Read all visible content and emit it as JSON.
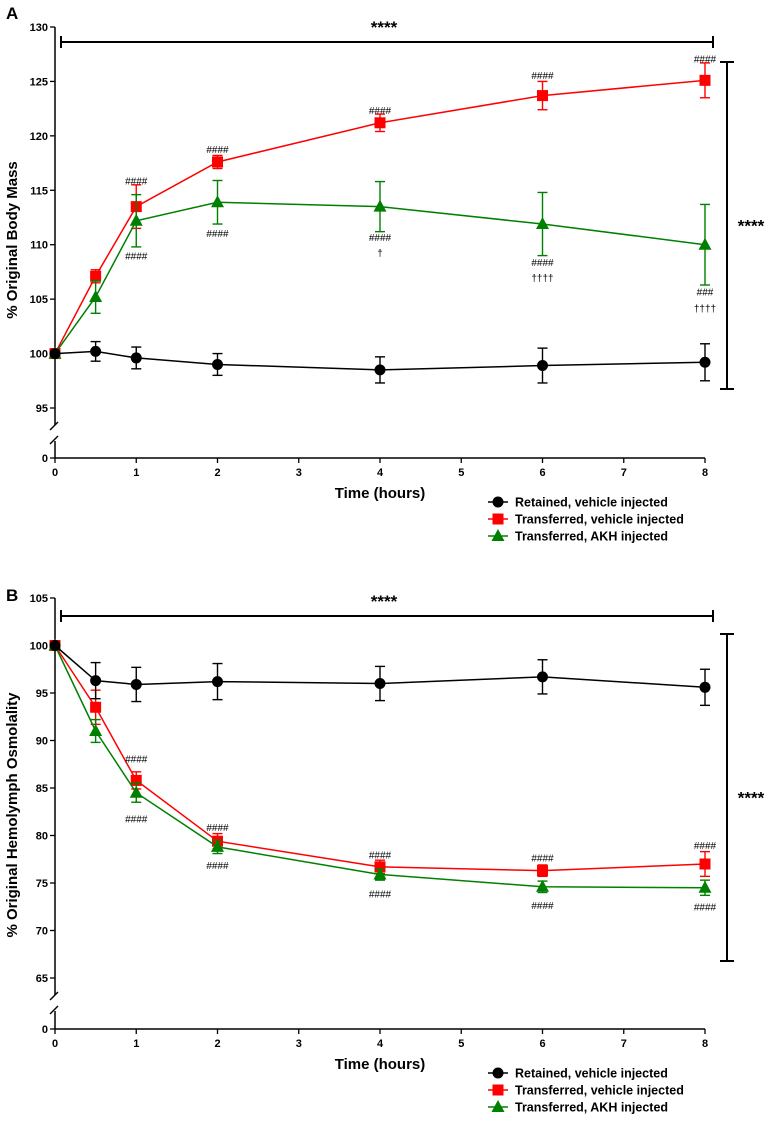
{
  "chart_data": [
    {
      "panel": "A",
      "type": "line",
      "ylabel": "% Original Body Mass",
      "xlabel": "Time (hours)",
      "xlim": [
        0,
        8
      ],
      "xticks": [
        "0",
        "1",
        "2",
        "3",
        "4",
        "5",
        "6",
        "7",
        "8"
      ],
      "ylim": [
        95,
        130
      ],
      "ybreak": [
        0,
        95
      ],
      "yticks": [
        "95",
        "100",
        "105",
        "110",
        "115",
        "120",
        "125",
        "130"
      ],
      "ytick_zero": "0",
      "x": [
        0,
        0.5,
        1,
        2,
        4,
        6,
        8
      ],
      "series": [
        {
          "name": "Retained, vehicle injected",
          "color": "#000000",
          "marker": "circle",
          "values": [
            100,
            100.2,
            99.6,
            99.0,
            98.5,
            98.9,
            99.2
          ],
          "errors": [
            0,
            0.9,
            1.0,
            1.0,
            1.2,
            1.6,
            1.7
          ]
        },
        {
          "name": "Transferred, vehicle injected",
          "color": "#ff0000",
          "marker": "square",
          "values": [
            100,
            107.1,
            113.5,
            117.6,
            121.2,
            123.7,
            125.1
          ],
          "errors": [
            0,
            0.6,
            2.0,
            0.6,
            0.8,
            1.3,
            1.6
          ]
        },
        {
          "name": "Transferred, AKH injected",
          "color": "#008000",
          "marker": "triangle",
          "values": [
            100,
            105.2,
            112.2,
            113.9,
            113.5,
            111.9,
            110.0
          ],
          "errors": [
            0,
            1.5,
            2.4,
            2.0,
            2.3,
            2.9,
            3.7
          ]
        }
      ],
      "significance": [
        {
          "label": "****",
          "position": "top bracket spanning 0-8 h"
        },
        {
          "label": "****",
          "position": "right bracket between retained and transferred groups"
        }
      ],
      "annotations": [
        {
          "x": 1,
          "y": 115.8,
          "text": "####",
          "series": "Transferred, vehicle injected"
        },
        {
          "x": 1,
          "y": 108.9,
          "text": "####",
          "series": "Transferred, AKH injected"
        },
        {
          "x": 2,
          "y": 118.7,
          "text": "####",
          "series": "Transferred, vehicle injected"
        },
        {
          "x": 2,
          "y": 111.0,
          "text": "####",
          "series": "Transferred, AKH injected"
        },
        {
          "x": 4,
          "y": 122.3,
          "text": "####",
          "series": "Transferred, vehicle injected"
        },
        {
          "x": 4,
          "y": 110.6,
          "text": "####",
          "series": "Transferred, AKH injected"
        },
        {
          "x": 4,
          "y": 109.2,
          "text": "†",
          "series": "Transferred, AKH injected"
        },
        {
          "x": 6,
          "y": 125.5,
          "text": "####",
          "series": "Transferred, vehicle injected"
        },
        {
          "x": 6,
          "y": 108.3,
          "text": "####",
          "series": "Transferred, AKH injected"
        },
        {
          "x": 6,
          "y": 106.9,
          "text": "††††",
          "series": "Transferred, AKH injected"
        },
        {
          "x": 8,
          "y": 127.0,
          "text": "####",
          "series": "Transferred, vehicle injected"
        },
        {
          "x": 8,
          "y": 105.6,
          "text": "###",
          "series": "Transferred, AKH injected"
        },
        {
          "x": 8,
          "y": 104.1,
          "text": "††††",
          "series": "Transferred, AKH injected"
        }
      ]
    },
    {
      "panel": "B",
      "type": "line",
      "ylabel": "% Original Hemolymph Osmolality",
      "xlabel": "Time (hours)",
      "xlim": [
        0,
        8
      ],
      "xticks": [
        "0",
        "1",
        "2",
        "3",
        "4",
        "5",
        "6",
        "7",
        "8"
      ],
      "ylim": [
        65,
        105
      ],
      "ybreak": [
        0,
        65
      ],
      "yticks": [
        "65",
        "70",
        "75",
        "80",
        "85",
        "90",
        "95",
        "100",
        "105"
      ],
      "ytick_zero": "0",
      "x": [
        0,
        0.5,
        1,
        2,
        4,
        6,
        8
      ],
      "series": [
        {
          "name": "Retained, vehicle injected",
          "color": "#000000",
          "marker": "circle",
          "values": [
            100,
            96.3,
            95.9,
            96.2,
            96.0,
            96.7,
            95.6
          ],
          "errors": [
            0,
            1.9,
            1.8,
            1.9,
            1.8,
            1.8,
            1.9
          ]
        },
        {
          "name": "Transferred, vehicle injected",
          "color": "#ff0000",
          "marker": "square",
          "values": [
            100,
            93.5,
            85.8,
            79.4,
            76.7,
            76.3,
            77.0
          ],
          "errors": [
            0,
            1.8,
            0.9,
            0.8,
            0.7,
            0.6,
            1.3
          ]
        },
        {
          "name": "Transferred, AKH injected",
          "color": "#008000",
          "marker": "triangle",
          "values": [
            100,
            91.0,
            84.5,
            78.8,
            75.9,
            74.6,
            74.5
          ],
          "errors": [
            0,
            1.2,
            1.0,
            0.7,
            0.6,
            0.6,
            0.8
          ]
        }
      ],
      "significance": [
        {
          "label": "****",
          "position": "top bracket spanning 0-8 h"
        },
        {
          "label": "****",
          "position": "right bracket between retained and transferred groups"
        }
      ],
      "annotations": [
        {
          "x": 1,
          "y": 88.0,
          "text": "####",
          "series": "Transferred, vehicle injected"
        },
        {
          "x": 1,
          "y": 81.7,
          "text": "####",
          "series": "Transferred, AKH injected"
        },
        {
          "x": 2,
          "y": 80.8,
          "text": "####",
          "series": "Transferred, vehicle injected"
        },
        {
          "x": 2,
          "y": 76.8,
          "text": "####",
          "series": "Transferred, AKH injected"
        },
        {
          "x": 4,
          "y": 77.9,
          "text": "####",
          "series": "Transferred, vehicle injected"
        },
        {
          "x": 4,
          "y": 73.8,
          "text": "####",
          "series": "Transferred, AKH injected"
        },
        {
          "x": 6,
          "y": 77.6,
          "text": "####",
          "series": "Transferred, vehicle injected"
        },
        {
          "x": 6,
          "y": 72.6,
          "text": "####",
          "series": "Transferred, AKH injected"
        },
        {
          "x": 8,
          "y": 78.9,
          "text": "####",
          "series": "Transferred, vehicle injected"
        },
        {
          "x": 8,
          "y": 72.4,
          "text": "####",
          "series": "Transferred, AKH injected"
        }
      ]
    }
  ]
}
